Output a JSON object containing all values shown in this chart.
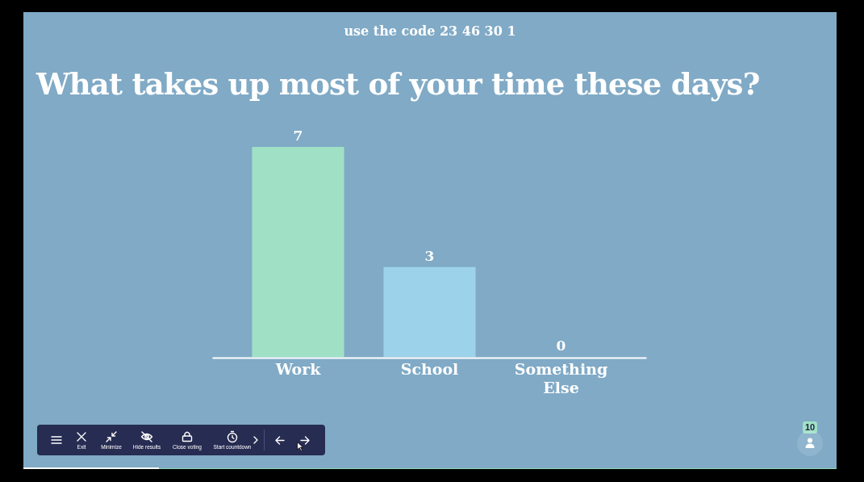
{
  "chart_data": {
    "type": "bar",
    "title": "What takes up most of your time these days?",
    "categories": [
      "Work",
      "School",
      "Something Else"
    ],
    "values": [
      7,
      3,
      0
    ],
    "colors": [
      "#a0e1c6",
      "#9dd3ea",
      "#f2b8c6"
    ],
    "data_labels": true,
    "annotations": [
      "use the code 23 46 30 1",
      "Exit",
      "Minimize",
      "Hide results",
      "Close voting",
      "Start countdown",
      "10"
    ]
  }
}
